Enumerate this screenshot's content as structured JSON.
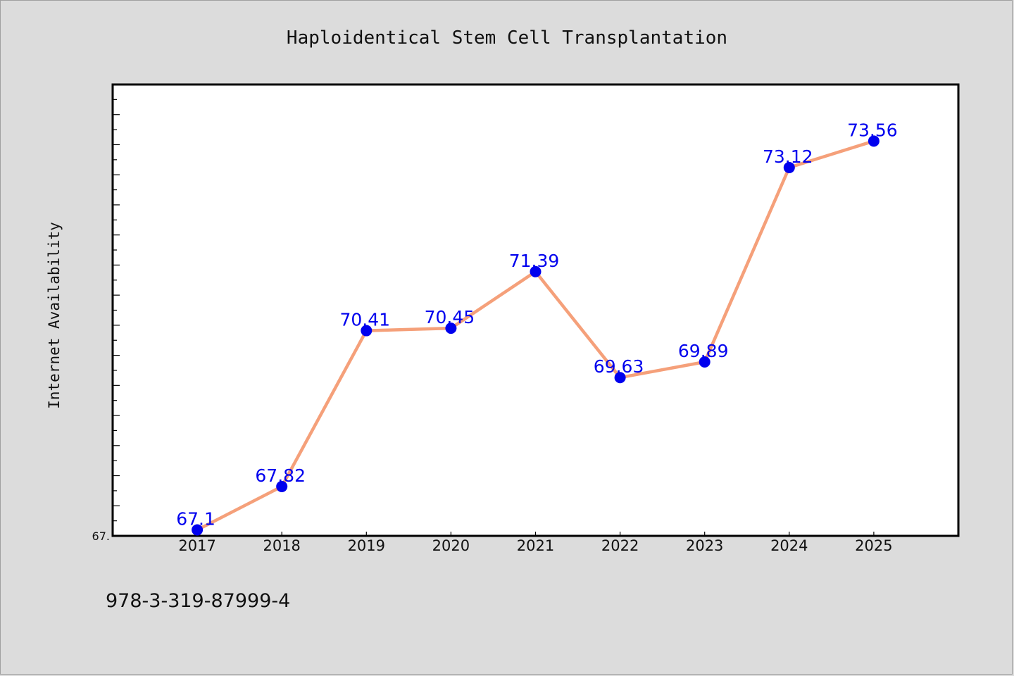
{
  "chart_data": {
    "type": "line",
    "title": "Haploidentical Stem Cell Transplantation",
    "ylabel": "Internet Availability",
    "xlabel": "",
    "categories": [
      "2017",
      "2018",
      "2019",
      "2020",
      "2021",
      "2022",
      "2023",
      "2024",
      "2025"
    ],
    "series": [
      {
        "values": [
          67.1,
          67.82,
          70.41,
          70.45,
          71.39,
          69.63,
          69.89,
          73.12,
          73.56
        ],
        "data_labels": [
          "67.1",
          "67.82",
          "70.41",
          "70.45",
          "71.39",
          "69.63",
          "69.89",
          "73.12",
          "73.56"
        ]
      }
    ],
    "ylim": [
      67.0,
      74.5
    ],
    "ytick_labels": [
      "67."
    ],
    "grid": false,
    "legend": "none",
    "colors": {
      "line": "#f5a07a",
      "marker": "#0000ee",
      "data_label": "#0000ee",
      "background": "#dcdcdc",
      "plot_background": "#ffffff"
    }
  },
  "footer": {
    "isbn": "978-3-319-87999-4"
  }
}
